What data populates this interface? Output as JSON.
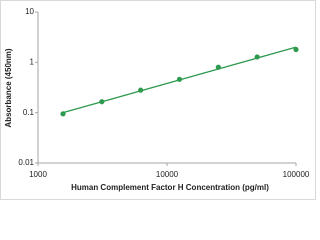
{
  "chart_data": {
    "type": "scatter",
    "x_label": "Human Complement Factor H Concentration (pg/ml)",
    "y_label": "Absorbance (450nm)",
    "x": [
      1562.5,
      3125,
      6250,
      12500,
      25000,
      50000,
      100000
    ],
    "series": [
      {
        "color": "#2e9a4e",
        "values": [
          0.095,
          0.165,
          0.28,
          0.46,
          0.8,
          1.28,
          1.8
        ]
      }
    ],
    "trend": {
      "color": "#2e9a4e",
      "x": [
        1562.5,
        100000
      ],
      "values": [
        0.1,
        2.0
      ]
    },
    "xscale": "log",
    "yscale": "log",
    "xlim": [
      1000,
      100000
    ],
    "xticks": [
      1000,
      10000,
      100000
    ],
    "ylim": [
      0.01,
      10
    ],
    "yticks": [
      0.01,
      0.1,
      1,
      10
    ],
    "grid": false
  }
}
